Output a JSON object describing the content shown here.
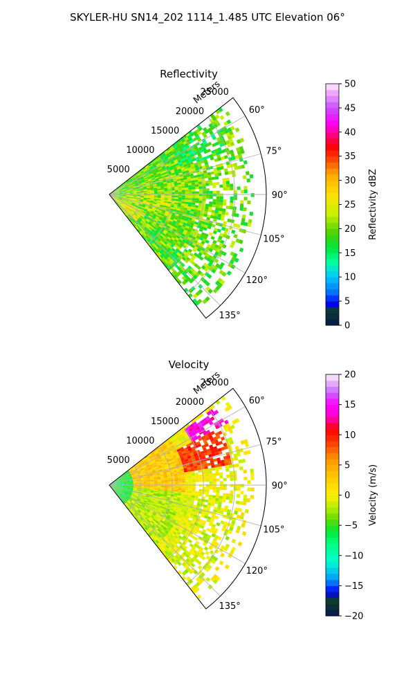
{
  "figure": {
    "suptitle": "SKYLER-HU  SN14_202  1114_1.485 UTC Elevation 06°"
  },
  "chart_data": [
    {
      "type": "heatmap",
      "projection": "polar-sector",
      "title": "Reflectivity",
      "range_axis_label": "Meters",
      "range_ticks": [
        5000,
        10000,
        15000,
        20000,
        25000
      ],
      "range_tick_labels": [
        "5000",
        "10000",
        "15000",
        "20000",
        "25000"
      ],
      "rlim": [
        0,
        25000
      ],
      "azimuth_range_deg": [
        52,
        142
      ],
      "azimuth_ticks": [
        60,
        75,
        90,
        105,
        120,
        135
      ],
      "azimuth_tick_labels": [
        "60°",
        "75°",
        "90°",
        "105°",
        "120°",
        "135°"
      ],
      "grid": true,
      "colorbar": {
        "label": "Reflectivity dBZ",
        "vmin": 0,
        "vmax": 50,
        "ticks": [
          0,
          5,
          10,
          15,
          20,
          25,
          30,
          35,
          40,
          45,
          50
        ],
        "tick_labels": [
          "0",
          "5",
          "10",
          "15",
          "20",
          "25",
          "30",
          "35",
          "40",
          "45",
          "50"
        ],
        "stops": [
          [
            0,
            "#061650"
          ],
          [
            3,
            "#0b3d2a"
          ],
          [
            4.5,
            "#0000ff"
          ],
          [
            7,
            "#0078ff"
          ],
          [
            10,
            "#00c8ff"
          ],
          [
            13,
            "#00ffa0"
          ],
          [
            16,
            "#00e640"
          ],
          [
            19,
            "#46d200"
          ],
          [
            23,
            "#c8f000"
          ],
          [
            27,
            "#ffe000"
          ],
          [
            31,
            "#ffb000"
          ],
          [
            34,
            "#ff5000"
          ],
          [
            37,
            "#ff0000"
          ],
          [
            40,
            "#ff00a0"
          ],
          [
            42,
            "#ff00ff"
          ],
          [
            45,
            "#c850ff"
          ],
          [
            48,
            "#f0a0ff"
          ],
          [
            50,
            "#fff0ff"
          ]
        ]
      },
      "field": {
        "units": "dBZ",
        "max_range_m": 23000,
        "regions": [
          {
            "az": [
              52,
              62
            ],
            "r": [
              2000,
              21000
            ],
            "value": 19
          },
          {
            "az": [
              56,
              70
            ],
            "r": [
              12000,
              20500
            ],
            "value": 17
          },
          {
            "az": [
              70,
              88
            ],
            "r": [
              4000,
              14500
            ],
            "value": 21
          },
          {
            "az": [
              88,
              110
            ],
            "r": [
              2000,
              10000
            ],
            "value": 22
          },
          {
            "az": [
              110,
              128
            ],
            "r": [
              5000,
              19000
            ],
            "value": 20
          },
          {
            "az": [
              128,
              142
            ],
            "r": [
              8000,
              22000
            ],
            "value": 19
          },
          {
            "az": [
              115,
              135
            ],
            "r": [
              0,
              6000
            ],
            "value": 25
          }
        ]
      }
    },
    {
      "type": "heatmap",
      "projection": "polar-sector",
      "title": "Velocity",
      "range_axis_label": "Meters",
      "range_ticks": [
        5000,
        10000,
        15000,
        20000,
        25000
      ],
      "range_tick_labels": [
        "5000",
        "10000",
        "15000",
        "20000",
        "25000"
      ],
      "rlim": [
        0,
        25000
      ],
      "azimuth_range_deg": [
        52,
        142
      ],
      "azimuth_ticks": [
        60,
        75,
        90,
        105,
        120,
        135
      ],
      "azimuth_tick_labels": [
        "60°",
        "75°",
        "90°",
        "105°",
        "120°",
        "135°"
      ],
      "grid": true,
      "colorbar": {
        "label": "Velocity (m/s)",
        "vmin": -20,
        "vmax": 20,
        "ticks": [
          -20,
          -15,
          -10,
          -5,
          0,
          5,
          10,
          15,
          20
        ],
        "tick_labels": [
          "−20",
          "−15",
          "−10",
          "−5",
          "0",
          "5",
          "10",
          "15",
          "20"
        ],
        "stops": [
          [
            -20,
            "#061650"
          ],
          [
            -17.5,
            "#0b3d2a"
          ],
          [
            -16,
            "#0000ff"
          ],
          [
            -14,
            "#0096ff"
          ],
          [
            -11,
            "#00ffd0"
          ],
          [
            -8,
            "#00ff80"
          ],
          [
            -6,
            "#00e632"
          ],
          [
            -4,
            "#64dc00"
          ],
          [
            -2,
            "#b4f000"
          ],
          [
            0,
            "#fff000"
          ],
          [
            3,
            "#ffc800"
          ],
          [
            6,
            "#ff9600"
          ],
          [
            9,
            "#ff3200"
          ],
          [
            11,
            "#ff0000"
          ],
          [
            13,
            "#ff00c8"
          ],
          [
            15,
            "#ff00ff"
          ],
          [
            17,
            "#c864ff"
          ],
          [
            20,
            "#fff0ff"
          ]
        ]
      },
      "field": {
        "units": "m/s",
        "max_range_m": 23000,
        "regions": [
          {
            "az": [
              52,
              142
            ],
            "r": [
              0,
              4000
            ],
            "value": -6
          },
          {
            "az": [
              95,
              142
            ],
            "r": [
              4000,
              12000
            ],
            "value": -2
          },
          {
            "az": [
              52,
              95
            ],
            "r": [
              4000,
              12000
            ],
            "value": 3
          },
          {
            "az": [
              62,
              80
            ],
            "r": [
              12000,
              20000
            ],
            "value": 9
          },
          {
            "az": [
              54,
              62
            ],
            "r": [
              15000,
              22000
            ],
            "value": 14
          },
          {
            "az": [
              95,
              140
            ],
            "r": [
              12000,
              21000
            ],
            "value": -1
          }
        ]
      }
    }
  ]
}
